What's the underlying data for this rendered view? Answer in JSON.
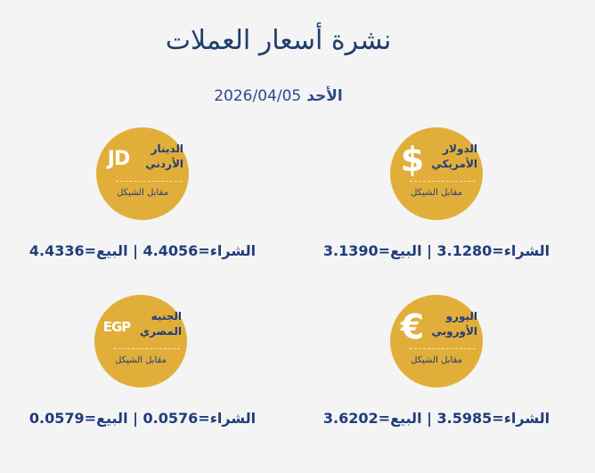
{
  "title": "نشرة أسعار العملات",
  "date": {
    "day": "الأحد",
    "value": "2026/04/05"
  },
  "vs_label": "مقابل الشيكل",
  "buy_label": "الشراء=",
  "sell_label": "البيع=",
  "separator": "|",
  "currencies": [
    {
      "symbol": "$",
      "name": "الدولار الأمريكي",
      "buy": "3.1280",
      "sell": "3.1390"
    },
    {
      "symbol": "JD",
      "name": "الدينار الأردني",
      "buy": "4.4056",
      "sell": "4.4336"
    },
    {
      "symbol": "€",
      "name": "اليورو الأوروبي",
      "buy": "3.5985",
      "sell": "3.6202"
    },
    {
      "symbol": "EGP",
      "name": "الجنيه المصري",
      "buy": "0.0576",
      "sell": "0.0579"
    }
  ],
  "colors": {
    "coin": "#e2ae3a",
    "text": "#1f3d7a",
    "background": "#f4f4f4"
  }
}
